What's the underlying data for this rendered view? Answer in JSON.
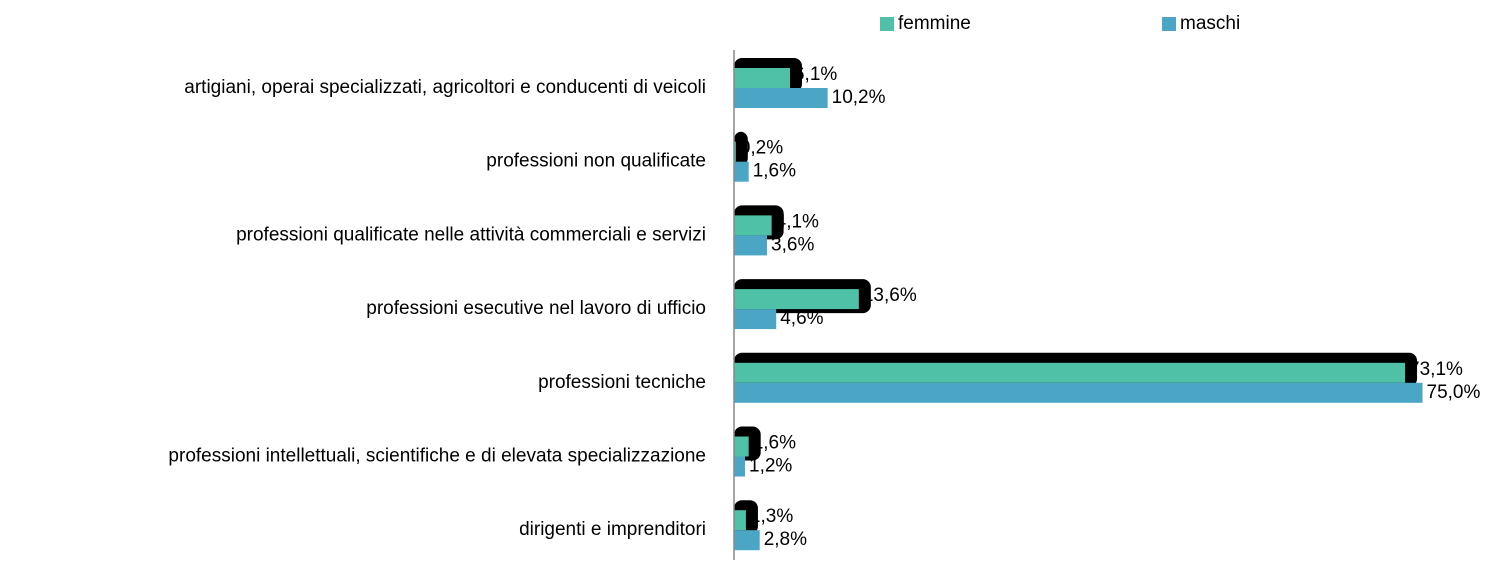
{
  "chart_data": {
    "type": "bar",
    "orientation": "horizontal",
    "categories": [
      "artigiani, operai specializzati, agricoltori e conducenti di veicoli",
      "professioni non qualificate",
      "professioni qualificate nelle attività commerciali e servizi",
      "professioni esecutive nel lavoro di ufficio",
      "professioni tecniche",
      "professioni intellettuali, scientifiche e di elevata specializzazione",
      "dirigenti e imprenditori"
    ],
    "series": [
      {
        "name": "femmine",
        "color": "#4fc1a6",
        "values": [
          6.1,
          0.2,
          4.1,
          13.6,
          73.1,
          1.6,
          1.3
        ],
        "value_labels": [
          "6,1%",
          "0,2%",
          "4,1%",
          "13,6%",
          "73,1%",
          "1,6%",
          "1,3%"
        ]
      },
      {
        "name": "maschi",
        "color": "#4ba6c6",
        "values": [
          10.2,
          1.6,
          3.6,
          4.6,
          75.0,
          1.2,
          2.8
        ],
        "value_labels": [
          "10,2%",
          "1,6%",
          "3,6%",
          "4,6%",
          "75,0%",
          "1,2%",
          "2,8%"
        ]
      }
    ],
    "xlim": [
      0,
      82
    ],
    "legend": "top",
    "shadow": true
  }
}
